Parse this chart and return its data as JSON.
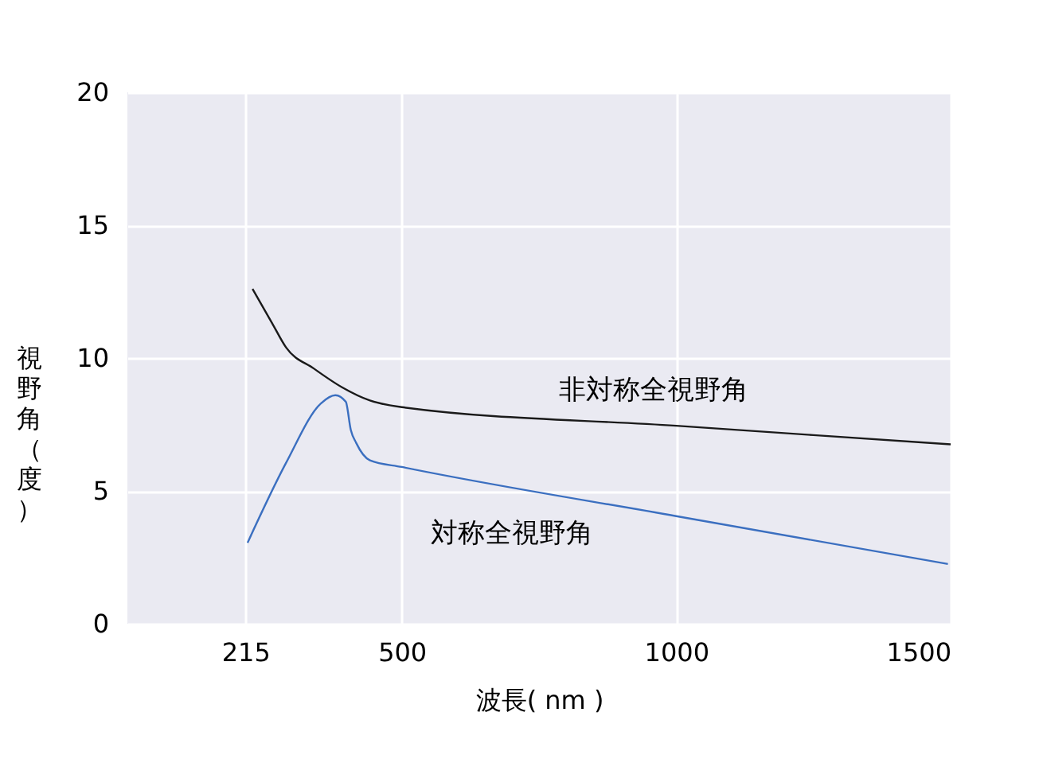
{
  "chart_data": {
    "type": "line",
    "xlabel": "波長( nm )",
    "ylabel": "視野角（度）",
    "xlim": [
      0,
      1500
    ],
    "xticks": [
      215,
      500,
      1000,
      1500
    ],
    "ylim": [
      0,
      20
    ],
    "yticks": [
      0,
      5,
      10,
      15,
      20
    ],
    "grid": true,
    "legend": false,
    "marker": "none",
    "line_style": "solid",
    "series": [
      {
        "name": "非対称全視野角",
        "color": "#1a1a1a",
        "x": [
          228,
          264,
          289,
          340,
          391,
          442,
          500,
          1000,
          1500
        ],
        "values": [
          12.6,
          11.3,
          10.4,
          9.6,
          8.9,
          8.4,
          8.15,
          7.45,
          6.75
        ]
      },
      {
        "name": "対称全視野角",
        "color": "#3b6fc0",
        "x": [
          219,
          289,
          353,
          379,
          398,
          407,
          417,
          442,
          500,
          1000,
          1495
        ],
        "values": [
          3.05,
          6.05,
          8.3,
          8.6,
          8.35,
          7.3,
          6.8,
          6.15,
          5.9,
          4.05,
          2.25
        ]
      }
    ]
  }
}
